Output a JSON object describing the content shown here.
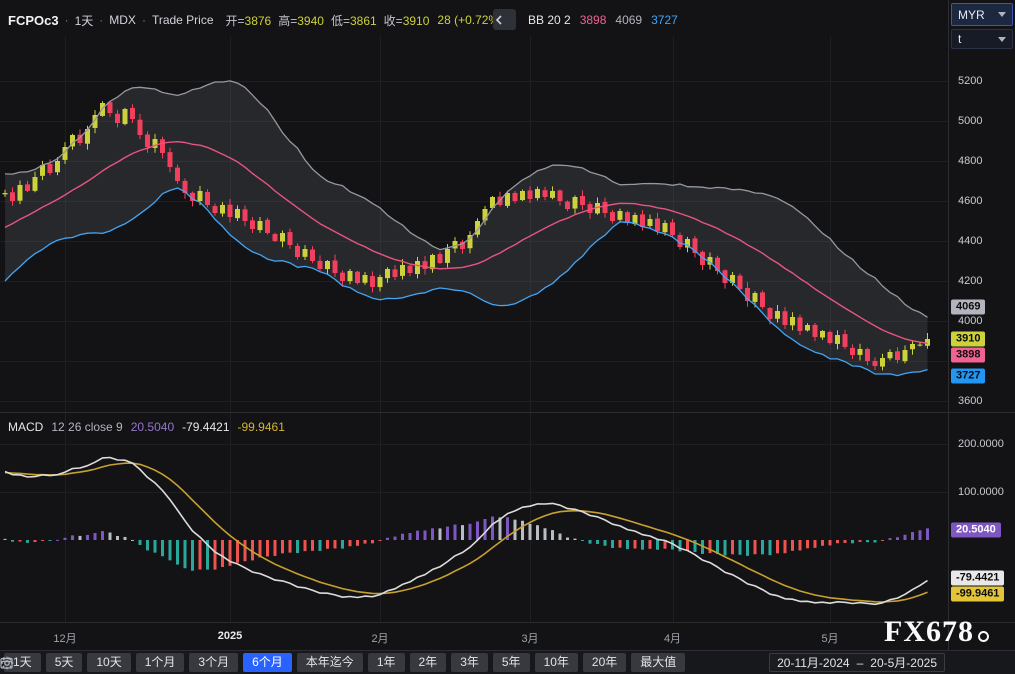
{
  "header": {
    "symbol": "FCPOc3",
    "sep": "·",
    "interval": "1天",
    "exchange": "MDX",
    "price_type": "Trade Price",
    "ohlc": [
      {
        "label": "开=",
        "value": "3876"
      },
      {
        "label": "高=",
        "value": "3940"
      },
      {
        "label": "低=",
        "value": "3861"
      },
      {
        "label": "收=",
        "value": "3910"
      }
    ],
    "change": "28 (+0.72%)",
    "bb": {
      "label": "BB 20 2",
      "middle": "3898",
      "upper": "4069",
      "lower": "3727"
    }
  },
  "axis_controls": {
    "currency": "MYR",
    "unit": "t"
  },
  "price_axis": {
    "ticks": [
      "5200",
      "5000",
      "4800",
      "4600",
      "4400",
      "4200",
      "4000",
      "3600"
    ],
    "tags": [
      {
        "text": "4069",
        "type": "bb-upper"
      },
      {
        "text": "3910",
        "type": "last"
      },
      {
        "text": "3898",
        "type": "bb-middle"
      },
      {
        "text": "3727",
        "type": "bb-lower"
      }
    ]
  },
  "macd_panel": {
    "title": "MACD",
    "params": "12 26 close 9",
    "hist_value": "20.5040",
    "macd_value": "-79.4421",
    "signal_value": "-99.9461",
    "axis_ticks": [
      "200.0000",
      "100.0000"
    ]
  },
  "watermark": "FX678",
  "toolbar": {
    "ranges": [
      "1天",
      "5天",
      "10天",
      "1个月",
      "3个月",
      "6个月",
      "本年迄今",
      "1年",
      "2年",
      "3年",
      "5年",
      "10年",
      "20年",
      "最大值"
    ],
    "selected": "6个月",
    "date_from": "20-11月-2024",
    "date_sep": "–",
    "date_to": "20-5月-2025"
  },
  "colors": {
    "up": "#cdd13b",
    "down": "#f23f5e",
    "bb_upper": "#9598a1",
    "bb_middle": "#e75480",
    "bb_lower": "#42a5f5",
    "bb_fill": "rgba(151,158,170,0.15)",
    "macd_line": "#dcdcdc",
    "signal_line": "#c8a02e",
    "hist_pos_up": "#7e57c2",
    "hist_pos_down": "#b8bcc4",
    "hist_neg_down": "#2aa79b",
    "hist_neg_up": "#ef5350",
    "accent": "#2962ff",
    "grid": "#1e1f24",
    "tag_upper_bg": "#b2b5be",
    "tag_last_bg": "#cdd13b",
    "tag_middle_bg": "#f06292",
    "tag_lower_bg": "#2196f3",
    "tag_hist_bg": "#7e57c2",
    "tag_macd_bg": "#e8e8e8",
    "tag_signal_bg": "#e3c53a"
  },
  "chart_data": [
    {
      "type": "candlestick",
      "title": "FCPOc3 1天 MDX Trade Price",
      "ylabel": "MYR",
      "ylim": [
        3545,
        5425
      ],
      "y_ticks": [
        5200,
        5000,
        4800,
        4600,
        4400,
        4200,
        4000,
        3800,
        3600
      ],
      "x_months": [
        {
          "label": "12月",
          "bar": 8
        },
        {
          "label": "2025",
          "bar": 30
        },
        {
          "label": "2月",
          "bar": 50
        },
        {
          "label": "3月",
          "bar": 70
        },
        {
          "label": "4月",
          "bar": 89
        },
        {
          "label": "5月",
          "bar": 110
        }
      ],
      "last_bar": {
        "open": 3876,
        "high": 3940,
        "low": 3861,
        "close": 3910,
        "change": 28,
        "change_pct": 0.72
      },
      "bollinger": {
        "period": 20,
        "stdev": 2,
        "upper": 4069,
        "middle": 3898,
        "lower": 3727
      },
      "pre_closes": [
        3900,
        3925,
        3950,
        3980,
        4010,
        4040,
        4070,
        4100,
        4130,
        4160,
        4190,
        4220,
        4250,
        4280,
        4310,
        4340,
        4370,
        4400,
        4425,
        4450,
        4475,
        4500,
        4520,
        4545,
        4565,
        4585,
        4600,
        4615,
        4628,
        4638
      ],
      "closes": [
        4640,
        4600,
        4680,
        4650,
        4720,
        4780,
        4740,
        4800,
        4870,
        4930,
        4890,
        4960,
        5030,
        5090,
        5040,
        4990,
        5060,
        5010,
        4930,
        4870,
        4910,
        4840,
        4770,
        4700,
        4640,
        4600,
        4650,
        4580,
        4540,
        4580,
        4520,
        4560,
        4500,
        4460,
        4500,
        4440,
        4400,
        4440,
        4380,
        4320,
        4360,
        4300,
        4260,
        4300,
        4240,
        4200,
        4250,
        4190,
        4230,
        4170,
        4220,
        4260,
        4220,
        4280,
        4240,
        4300,
        4260,
        4330,
        4290,
        4360,
        4400,
        4360,
        4430,
        4500,
        4560,
        4620,
        4580,
        4640,
        4600,
        4650,
        4610,
        4660,
        4620,
        4650,
        4600,
        4560,
        4620,
        4580,
        4540,
        4590,
        4540,
        4500,
        4550,
        4490,
        4530,
        4470,
        4510,
        4450,
        4490,
        4430,
        4370,
        4410,
        4340,
        4280,
        4320,
        4250,
        4190,
        4230,
        4160,
        4100,
        4140,
        4070,
        4010,
        4050,
        3980,
        4020,
        3950,
        3980,
        3920,
        3950,
        3890,
        3930,
        3870,
        3830,
        3860,
        3800,
        3775,
        3815,
        3845,
        3805,
        3855,
        3885,
        3882,
        3910
      ]
    },
    {
      "type": "macd",
      "title": "MACD 12 26 close 9",
      "fast": 12,
      "slow": 26,
      "source": "close",
      "signal_period": 9,
      "current": {
        "histogram": 20.504,
        "macd": -79.4421,
        "signal": -99.9461
      },
      "y_ticks": [
        200,
        100
      ],
      "ylim": [
        -170,
        254
      ],
      "legend_position": "top-left"
    }
  ]
}
